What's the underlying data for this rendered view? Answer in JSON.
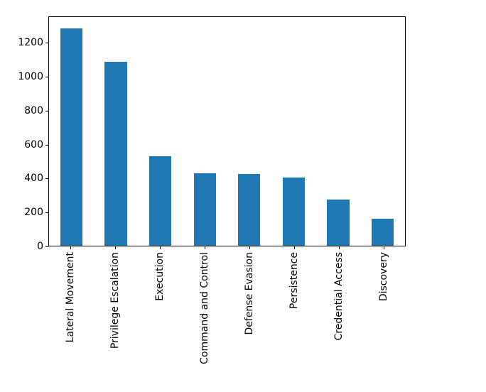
{
  "figure": {
    "background_color": "#ffffff",
    "bar_color": "#1f77b4",
    "spine_color": "#000000",
    "text_color": "#000000"
  },
  "chart_data": {
    "type": "bar",
    "title": "",
    "xlabel": "",
    "ylabel": "",
    "categories": [
      "Lateral Movement",
      "Privilege Escalation",
      "Execution",
      "Command and Control",
      "Defense Evasion",
      "Persistence",
      "Credential Access",
      "Discovery"
    ],
    "values": [
      1290,
      1090,
      530,
      430,
      425,
      405,
      275,
      160
    ],
    "yticks": [
      0,
      200,
      400,
      600,
      800,
      1000,
      1200
    ],
    "ylim": [
      0,
      1357
    ],
    "bar_width_fraction": 0.5,
    "x_tick_label_rotation_deg": 90,
    "grid": false,
    "legend": false
  }
}
